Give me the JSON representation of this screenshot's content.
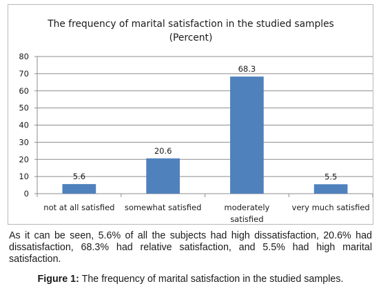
{
  "chart_data": {
    "type": "bar",
    "title_lines": [
      "The frequency of marital satisfaction in the studied samples",
      "(Percent)"
    ],
    "categories": [
      [
        "not at all satisfied"
      ],
      [
        "somewhat satisfied"
      ],
      [
        "moderately",
        "satisfied"
      ],
      [
        "very much satisfied"
      ]
    ],
    "values": [
      5.6,
      20.6,
      68.3,
      5.5
    ],
    "value_labels": [
      "5.6",
      "20.6",
      "68.3",
      "5.5"
    ],
    "yticks": [
      0,
      10,
      20,
      30,
      40,
      50,
      60,
      70,
      80
    ],
    "ylim": [
      0,
      80
    ],
    "grid": true,
    "legend": "none",
    "bar_color": "#4f81bd",
    "grid_color": "#8c8c8c"
  },
  "caption": {
    "body": "As it can be seen, 5.6% of all the subjects had high dissatisfaction, 20.6% had dissatisfaction, 68.3% had relative satisfaction, and 5.5% had high marital satisfaction.",
    "figure_label": "Figure 1:",
    "figure_text": " The frequency of marital satisfaction in the studied samples."
  }
}
